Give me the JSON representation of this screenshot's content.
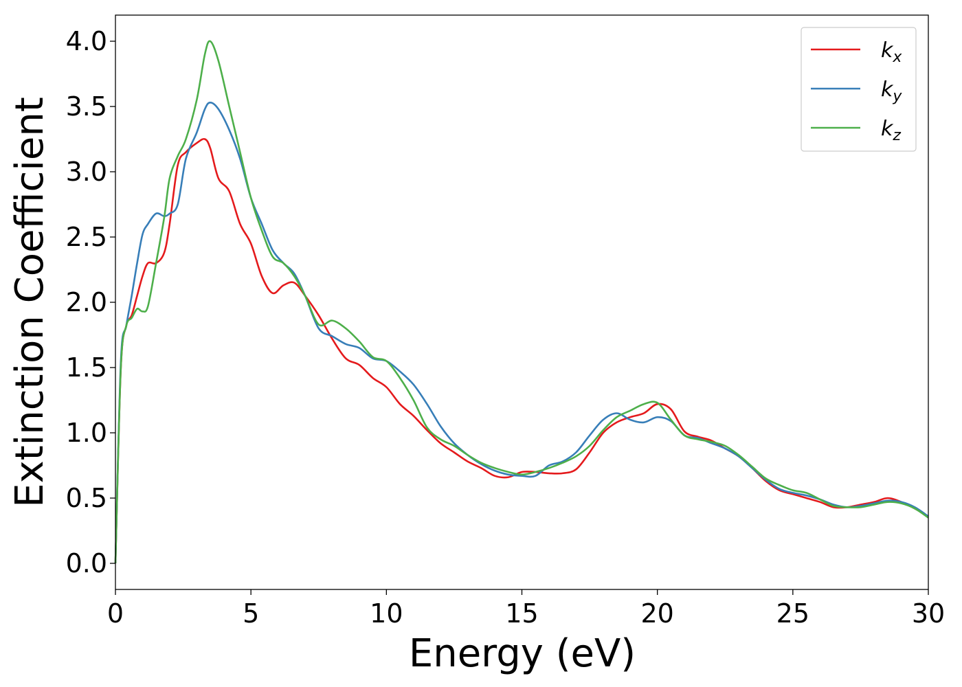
{
  "chart_data": {
    "type": "line",
    "xlabel": "Energy (eV)",
    "ylabel": "Extinction Coefficient",
    "xlim": [
      0,
      30
    ],
    "ylim": [
      -0.2,
      4.2
    ],
    "xticks": [
      0,
      5,
      10,
      15,
      20,
      25,
      30
    ],
    "xtick_labels": [
      "0",
      "5",
      "10",
      "15",
      "20",
      "25",
      "30"
    ],
    "yticks": [
      0.0,
      0.5,
      1.0,
      1.5,
      2.0,
      2.5,
      3.0,
      3.5,
      4.0
    ],
    "ytick_labels": [
      "0.0",
      "0.5",
      "1.0",
      "1.5",
      "2.0",
      "2.5",
      "3.0",
      "3.5",
      "4.0"
    ],
    "grid": false,
    "legend_position": "top-right",
    "series": [
      {
        "name": "kx",
        "label_main": "k",
        "label_sub": "x",
        "color": "#e41a1c",
        "x": [
          0,
          0.2,
          0.4,
          0.6,
          0.8,
          1.0,
          1.2,
          1.5,
          1.8,
          2.0,
          2.3,
          2.6,
          3.0,
          3.3,
          3.5,
          3.8,
          4.2,
          4.6,
          5.0,
          5.4,
          5.8,
          6.2,
          6.6,
          7.0,
          7.5,
          8.0,
          8.5,
          9.0,
          9.5,
          10.0,
          10.5,
          11.0,
          11.5,
          12.0,
          12.5,
          13.0,
          13.5,
          14.0,
          14.5,
          15.0,
          15.5,
          16.0,
          16.5,
          17.0,
          17.5,
          18.0,
          18.5,
          19.0,
          19.5,
          20.0,
          20.5,
          21.0,
          21.5,
          22.0,
          22.5,
          23.0,
          23.5,
          24.0,
          24.5,
          25.0,
          25.5,
          26.0,
          26.5,
          27.0,
          27.5,
          28.0,
          28.5,
          29.0,
          29.5,
          30.0
        ],
        "values": [
          0.0,
          1.5,
          1.82,
          1.9,
          2.05,
          2.2,
          2.3,
          2.3,
          2.38,
          2.6,
          3.05,
          3.15,
          3.22,
          3.25,
          3.18,
          2.95,
          2.85,
          2.6,
          2.45,
          2.2,
          2.07,
          2.13,
          2.15,
          2.05,
          1.9,
          1.72,
          1.57,
          1.52,
          1.42,
          1.35,
          1.22,
          1.13,
          1.02,
          0.92,
          0.85,
          0.78,
          0.73,
          0.67,
          0.66,
          0.7,
          0.7,
          0.69,
          0.69,
          0.72,
          0.85,
          1.0,
          1.08,
          1.12,
          1.15,
          1.22,
          1.18,
          1.01,
          0.97,
          0.94,
          0.88,
          0.82,
          0.73,
          0.63,
          0.56,
          0.53,
          0.5,
          0.47,
          0.43,
          0.43,
          0.45,
          0.47,
          0.5,
          0.47,
          0.42,
          0.36
        ]
      },
      {
        "name": "ky",
        "label_main": "k",
        "label_sub": "y",
        "color": "#377eb8",
        "x": [
          0,
          0.2,
          0.4,
          0.6,
          0.8,
          1.0,
          1.2,
          1.5,
          1.8,
          2.0,
          2.3,
          2.6,
          3.0,
          3.3,
          3.5,
          3.8,
          4.2,
          4.6,
          5.0,
          5.4,
          5.8,
          6.2,
          6.6,
          7.0,
          7.5,
          8.0,
          8.5,
          9.0,
          9.5,
          10.0,
          10.5,
          11.0,
          11.5,
          12.0,
          12.5,
          13.0,
          13.5,
          14.0,
          14.5,
          15.0,
          15.5,
          16.0,
          16.5,
          17.0,
          17.5,
          18.0,
          18.5,
          19.0,
          19.5,
          20.0,
          20.5,
          21.0,
          21.5,
          22.0,
          22.5,
          23.0,
          23.5,
          24.0,
          24.5,
          25.0,
          25.5,
          26.0,
          26.5,
          27.0,
          27.5,
          28.0,
          28.5,
          29.0,
          29.5,
          30.0
        ],
        "values": [
          0.0,
          1.55,
          1.82,
          2.05,
          2.3,
          2.52,
          2.6,
          2.68,
          2.66,
          2.68,
          2.75,
          3.1,
          3.3,
          3.48,
          3.53,
          3.48,
          3.32,
          3.1,
          2.8,
          2.6,
          2.4,
          2.3,
          2.22,
          2.05,
          1.8,
          1.74,
          1.68,
          1.65,
          1.57,
          1.55,
          1.47,
          1.37,
          1.22,
          1.05,
          0.92,
          0.83,
          0.76,
          0.71,
          0.68,
          0.67,
          0.67,
          0.75,
          0.78,
          0.85,
          0.98,
          1.1,
          1.15,
          1.1,
          1.08,
          1.12,
          1.09,
          0.98,
          0.96,
          0.92,
          0.88,
          0.82,
          0.73,
          0.64,
          0.57,
          0.54,
          0.52,
          0.49,
          0.45,
          0.43,
          0.44,
          0.46,
          0.48,
          0.47,
          0.43,
          0.36
        ]
      },
      {
        "name": "kz",
        "label_main": "k",
        "label_sub": "z",
        "color": "#4daf4a",
        "x": [
          0,
          0.2,
          0.4,
          0.6,
          0.8,
          1.0,
          1.2,
          1.5,
          1.8,
          2.0,
          2.3,
          2.6,
          3.0,
          3.3,
          3.5,
          3.8,
          4.2,
          4.6,
          5.0,
          5.4,
          5.8,
          6.2,
          6.6,
          7.0,
          7.5,
          8.0,
          8.5,
          9.0,
          9.5,
          10.0,
          10.5,
          11.0,
          11.5,
          12.0,
          12.5,
          13.0,
          13.5,
          14.0,
          14.5,
          15.0,
          15.5,
          16.0,
          16.5,
          17.0,
          17.5,
          18.0,
          18.5,
          19.0,
          19.5,
          20.0,
          20.5,
          21.0,
          21.5,
          22.0,
          22.5,
          23.0,
          23.5,
          24.0,
          24.5,
          25.0,
          25.5,
          26.0,
          26.5,
          27.0,
          27.5,
          28.0,
          28.5,
          29.0,
          29.5,
          30.0
        ],
        "values": [
          0.0,
          1.5,
          1.82,
          1.88,
          1.95,
          1.93,
          1.97,
          2.3,
          2.65,
          2.95,
          3.12,
          3.25,
          3.55,
          3.9,
          4.0,
          3.85,
          3.5,
          3.15,
          2.8,
          2.55,
          2.35,
          2.3,
          2.2,
          2.05,
          1.83,
          1.86,
          1.8,
          1.7,
          1.58,
          1.55,
          1.42,
          1.25,
          1.04,
          0.95,
          0.9,
          0.83,
          0.77,
          0.73,
          0.7,
          0.68,
          0.7,
          0.73,
          0.77,
          0.82,
          0.9,
          1.02,
          1.12,
          1.17,
          1.22,
          1.23,
          1.1,
          0.98,
          0.95,
          0.93,
          0.9,
          0.83,
          0.74,
          0.65,
          0.6,
          0.56,
          0.54,
          0.49,
          0.44,
          0.43,
          0.43,
          0.45,
          0.47,
          0.46,
          0.42,
          0.35
        ]
      }
    ]
  }
}
